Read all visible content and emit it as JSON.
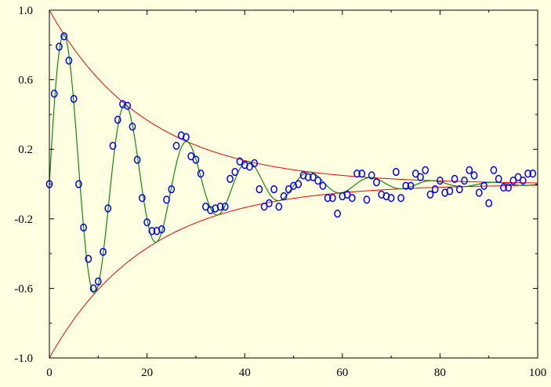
{
  "chart_data": {
    "type": "scatter",
    "title": "",
    "xlabel": "",
    "ylabel": "",
    "xlim": [
      0,
      100
    ],
    "ylim": [
      -1.0,
      1.0
    ],
    "x_ticks": [
      "0",
      "20",
      "40",
      "60",
      "80",
      "100"
    ],
    "x_tick_values": [
      0,
      20,
      40,
      60,
      80,
      100
    ],
    "y_ticks": [
      "1.0",
      "0.6",
      "0.2",
      "-0.2",
      "-0.6",
      "-1.0"
    ],
    "y_tick_values": [
      1.0,
      0.6,
      0.2,
      -0.2,
      -0.6,
      -1.0
    ],
    "grid": false,
    "legend": "none",
    "colors": {
      "background": "#ffffe1",
      "points": "#0000ff",
      "fit_line": "#008000",
      "envelope": "#ff0000",
      "axes": "#000000"
    },
    "series": [
      {
        "type": "scatter",
        "points": [
          [
            0,
            0.0
          ],
          [
            1,
            0.52
          ],
          [
            2,
            0.79
          ],
          [
            3,
            0.85
          ],
          [
            4,
            0.71
          ],
          [
            5,
            0.49
          ],
          [
            6,
            0.0
          ],
          [
            7,
            -0.25
          ],
          [
            8,
            -0.43
          ],
          [
            9,
            -0.6
          ],
          [
            10,
            -0.56
          ],
          [
            11,
            -0.39
          ],
          [
            12,
            -0.14
          ],
          [
            13,
            0.22
          ],
          [
            14,
            0.37
          ],
          [
            15,
            0.46
          ],
          [
            16,
            0.45
          ],
          [
            17,
            0.33
          ],
          [
            18,
            0.14
          ],
          [
            19,
            -0.08
          ],
          [
            20,
            -0.22
          ],
          [
            21,
            -0.27
          ],
          [
            22,
            -0.27
          ],
          [
            23,
            -0.26
          ],
          [
            24,
            -0.09
          ],
          [
            25,
            -0.03
          ],
          [
            26,
            0.22
          ],
          [
            27,
            0.28
          ],
          [
            28,
            0.27
          ],
          [
            29,
            0.16
          ],
          [
            30,
            0.14
          ],
          [
            31,
            0.06
          ],
          [
            32,
            -0.13
          ],
          [
            33,
            -0.15
          ],
          [
            34,
            -0.14
          ],
          [
            35,
            -0.13
          ],
          [
            36,
            -0.13
          ],
          [
            37,
            0.03
          ],
          [
            38,
            0.07
          ],
          [
            39,
            0.13
          ],
          [
            40,
            0.11
          ],
          [
            41,
            0.1
          ],
          [
            42,
            0.12
          ],
          [
            43,
            -0.03
          ],
          [
            44,
            -0.13
          ],
          [
            45,
            -0.11
          ],
          [
            46,
            -0.03
          ],
          [
            47,
            -0.13
          ],
          [
            48,
            -0.07
          ],
          [
            49,
            -0.03
          ],
          [
            50,
            -0.01
          ],
          [
            51,
            0.0
          ],
          [
            52,
            0.05
          ],
          [
            53,
            0.04
          ],
          [
            54,
            0.04
          ],
          [
            55,
            0.02
          ],
          [
            56,
            -0.01
          ],
          [
            57,
            -0.08
          ],
          [
            58,
            -0.08
          ],
          [
            59,
            -0.17
          ],
          [
            60,
            -0.07
          ],
          [
            61,
            -0.06
          ],
          [
            62,
            -0.08
          ],
          [
            63,
            0.06
          ],
          [
            64,
            0.06
          ],
          [
            65,
            -0.09
          ],
          [
            66,
            0.05
          ],
          [
            67,
            0.01
          ],
          [
            68,
            -0.06
          ],
          [
            69,
            -0.07
          ],
          [
            70,
            -0.08
          ],
          [
            71,
            0.07
          ],
          [
            72,
            -0.08
          ],
          [
            73,
            -0.01
          ],
          [
            74,
            -0.01
          ],
          [
            75,
            0.06
          ],
          [
            76,
            0.04
          ],
          [
            77,
            0.08
          ],
          [
            78,
            -0.06
          ],
          [
            79,
            -0.03
          ],
          [
            80,
            0.02
          ],
          [
            81,
            -0.05
          ],
          [
            82,
            -0.04
          ],
          [
            83,
            0.03
          ],
          [
            84,
            -0.03
          ],
          [
            85,
            0.02
          ],
          [
            86,
            0.08
          ],
          [
            87,
            0.05
          ],
          [
            88,
            -0.05
          ],
          [
            89,
            -0.01
          ],
          [
            90,
            -0.11
          ],
          [
            91,
            0.08
          ],
          [
            92,
            0.03
          ],
          [
            93,
            -0.02
          ],
          [
            94,
            -0.02
          ],
          [
            95,
            0.02
          ],
          [
            96,
            0.04
          ],
          [
            97,
            0.02
          ],
          [
            98,
            0.06
          ],
          [
            99,
            0.06
          ]
        ]
      },
      {
        "type": "line",
        "function": "damped_cosine",
        "amplitude": 1.0,
        "decay_rate": 0.05,
        "period": 12.56,
        "phase_shift_x": 3.14,
        "x_range": [
          0,
          100
        ]
      },
      {
        "type": "line",
        "function": "exp_envelope_upper",
        "amplitude": 1.0,
        "decay_rate": 0.05,
        "x_range": [
          0,
          100
        ]
      },
      {
        "type": "line",
        "function": "exp_envelope_lower",
        "amplitude": -1.0,
        "decay_rate": 0.05,
        "x_range": [
          0,
          100
        ]
      }
    ]
  }
}
